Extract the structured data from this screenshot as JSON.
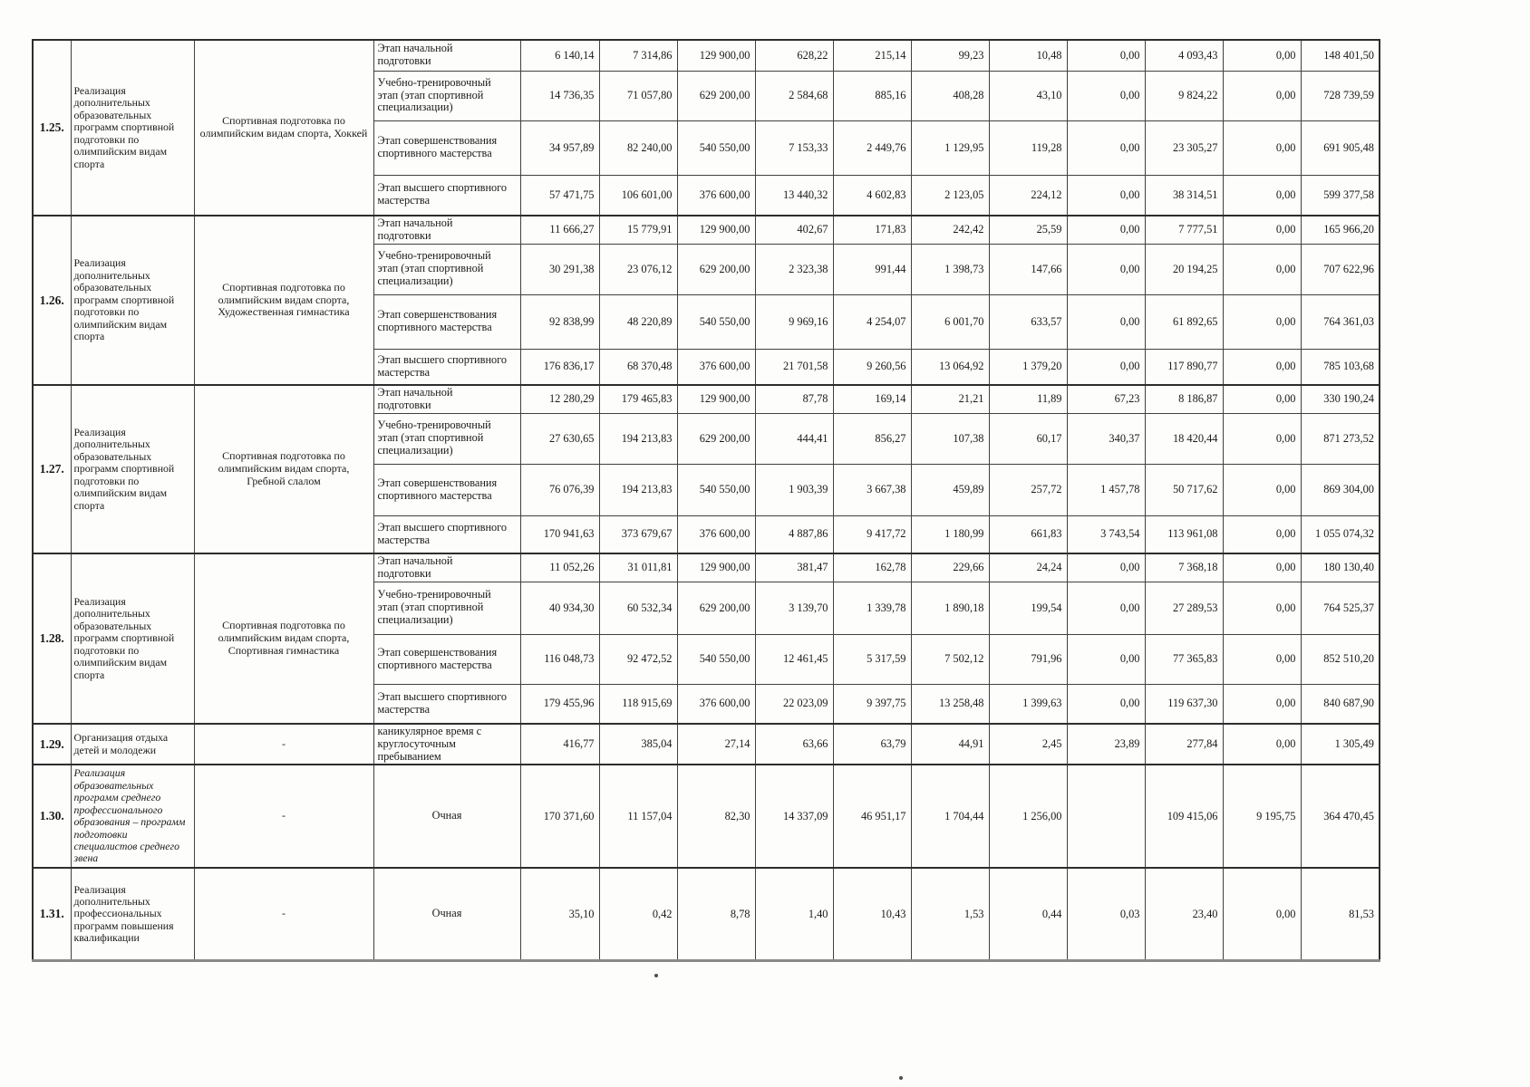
{
  "colors": {
    "ink": "#1a1a1a",
    "border": "#414141",
    "paper": "#fdfdfc",
    "bottom_rule": "#8a8a8a"
  },
  "table": {
    "rows": [
      {
        "num": "1.25.",
        "program": "Реализация дополнительных образовательных программ спортивной подготовки по олимпийским видам спорта",
        "sport": "Спортивная подготовка по олимпийским видам спорта, Хоккей",
        "stages": [
          {
            "stage": "Этап начальной подготовки",
            "values": [
              "6 140,14",
              "7 314,86",
              "129 900,00",
              "628,22",
              "215,14",
              "99,23",
              "10,48",
              "0,00",
              "4 093,43",
              "0,00",
              "148 401,50"
            ]
          },
          {
            "stage": "Учебно-тренировочный этап (этап спортивной специализации)",
            "values": [
              "14 736,35",
              "71 057,80",
              "629 200,00",
              "2 584,68",
              "885,16",
              "408,28",
              "43,10",
              "0,00",
              "9 824,22",
              "0,00",
              "728 739,59"
            ]
          },
          {
            "stage": "Этап совершенствования спортивного мастерства",
            "values": [
              "34 957,89",
              "82 240,00",
              "540 550,00",
              "7 153,33",
              "2 449,76",
              "1 129,95",
              "119,28",
              "0,00",
              "23 305,27",
              "0,00",
              "691 905,48"
            ]
          },
          {
            "stage": "Этап высшего спортивного мастерства",
            "values": [
              "57 471,75",
              "106 601,00",
              "376 600,00",
              "13 440,32",
              "4 602,83",
              "2 123,05",
              "224,12",
              "0,00",
              "38 314,51",
              "0,00",
              "599 377,58"
            ]
          }
        ]
      },
      {
        "num": "1.26.",
        "program": "Реализация дополнительных образовательных программ спортивной подготовки по олимпийским видам спорта",
        "sport": "Спортивная подготовка по олимпийским видам спорта, Художественная гимнастика",
        "stages": [
          {
            "stage": "Этап начальной подготовки",
            "values": [
              "11 666,27",
              "15 779,91",
              "129 900,00",
              "402,67",
              "171,83",
              "242,42",
              "25,59",
              "0,00",
              "7 777,51",
              "0,00",
              "165 966,20"
            ]
          },
          {
            "stage": "Учебно-тренировочный этап (этап спортивной специализации)",
            "values": [
              "30 291,38",
              "23 076,12",
              "629 200,00",
              "2 323,38",
              "991,44",
              "1 398,73",
              "147,66",
              "0,00",
              "20 194,25",
              "0,00",
              "707 622,96"
            ]
          },
          {
            "stage": "Этап совершенствования спортивного мастерства",
            "values": [
              "92 838,99",
              "48 220,89",
              "540 550,00",
              "9 969,16",
              "4 254,07",
              "6 001,70",
              "633,57",
              "0,00",
              "61 892,65",
              "0,00",
              "764 361,03"
            ]
          },
          {
            "stage": "Этап высшего спортивного мастерства",
            "values": [
              "176 836,17",
              "68 370,48",
              "376 600,00",
              "21 701,58",
              "9 260,56",
              "13 064,92",
              "1 379,20",
              "0,00",
              "117 890,77",
              "0,00",
              "785 103,68"
            ]
          }
        ]
      },
      {
        "num": "1.27.",
        "program": "Реализация дополнительных образовательных программ спортивной подготовки по олимпийским видам спорта",
        "sport": "Спортивная подготовка по олимпийским видам спорта, Гребной слалом",
        "stages": [
          {
            "stage": "Этап начальной подготовки",
            "values": [
              "12 280,29",
              "179 465,83",
              "129 900,00",
              "87,78",
              "169,14",
              "21,21",
              "11,89",
              "67,23",
              "8 186,87",
              "0,00",
              "330 190,24"
            ]
          },
          {
            "stage": "Учебно-тренировочный этап (этап спортивной специализации)",
            "values": [
              "27 630,65",
              "194 213,83",
              "629 200,00",
              "444,41",
              "856,27",
              "107,38",
              "60,17",
              "340,37",
              "18 420,44",
              "0,00",
              "871 273,52"
            ]
          },
          {
            "stage": "Этап совершенствования спортивного мастерства",
            "values": [
              "76 076,39",
              "194 213,83",
              "540 550,00",
              "1 903,39",
              "3 667,38",
              "459,89",
              "257,72",
              "1 457,78",
              "50 717,62",
              "0,00",
              "869 304,00"
            ]
          },
          {
            "stage": "Этап высшего спортивного мастерства",
            "values": [
              "170 941,63",
              "373 679,67",
              "376 600,00",
              "4 887,86",
              "9 417,72",
              "1 180,99",
              "661,83",
              "3 743,54",
              "113 961,08",
              "0,00",
              "1 055 074,32"
            ]
          }
        ]
      },
      {
        "num": "1.28.",
        "program": "Реализация дополнительных образовательных программ спортивной подготовки по олимпийским видам спорта",
        "sport": "Спортивная подготовка по олимпийским видам спорта, Спортивная гимнастика",
        "stages": [
          {
            "stage": "Этап начальной подготовки",
            "values": [
              "11 052,26",
              "31 011,81",
              "129 900,00",
              "381,47",
              "162,78",
              "229,66",
              "24,24",
              "0,00",
              "7 368,18",
              "0,00",
              "180 130,40"
            ]
          },
          {
            "stage": "Учебно-тренировочный этап (этап спортивной специализации)",
            "values": [
              "40 934,30",
              "60 532,34",
              "629 200,00",
              "3 139,70",
              "1 339,78",
              "1 890,18",
              "199,54",
              "0,00",
              "27 289,53",
              "0,00",
              "764 525,37"
            ]
          },
          {
            "stage": "Этап совершенствования спортивного мастерства",
            "values": [
              "116 048,73",
              "92 472,52",
              "540 550,00",
              "12 461,45",
              "5 317,59",
              "7 502,12",
              "791,96",
              "0,00",
              "77 365,83",
              "0,00",
              "852 510,20"
            ]
          },
          {
            "stage": "Этап высшего спортивного мастерства",
            "values": [
              "179 455,96",
              "118 915,69",
              "376 600,00",
              "22 023,09",
              "9 397,75",
              "13 258,48",
              "1 399,63",
              "0,00",
              "119 637,30",
              "0,00",
              "840 687,90"
            ]
          }
        ]
      },
      {
        "num": "1.29.",
        "program": "Организация отдыха детей и молодежи",
        "sport": "-",
        "stages": [
          {
            "stage": "каникулярное время с круглосуточным пребыванием",
            "values": [
              "416,77",
              "385,04",
              "27,14",
              "63,66",
              "63,79",
              "44,91",
              "2,45",
              "23,89",
              "277,84",
              "0,00",
              "1 305,49"
            ]
          }
        ]
      },
      {
        "num": "1.30.",
        "program": "Реализация образовательных программ среднего профессионального образования – программ подготовки специалистов среднего звена",
        "sport": "-",
        "stages": [
          {
            "stage": "Очная",
            "values": [
              "170 371,60",
              "11 157,04",
              "82,30",
              "14 337,09",
              "46 951,17",
              "1 704,44",
              "1 256,00",
              "",
              "109 415,06",
              "9 195,75",
              "364 470,45"
            ]
          }
        ]
      },
      {
        "num": "1.31.",
        "program": "Реализация дополнительных профессиональных программ повышения квалификации",
        "sport": "-",
        "stages": [
          {
            "stage": "Очная",
            "values": [
              "35,10",
              "0,42",
              "8,78",
              "1,40",
              "10,43",
              "1,53",
              "0,44",
              "0,03",
              "23,40",
              "0,00",
              "81,53"
            ]
          }
        ]
      }
    ]
  }
}
